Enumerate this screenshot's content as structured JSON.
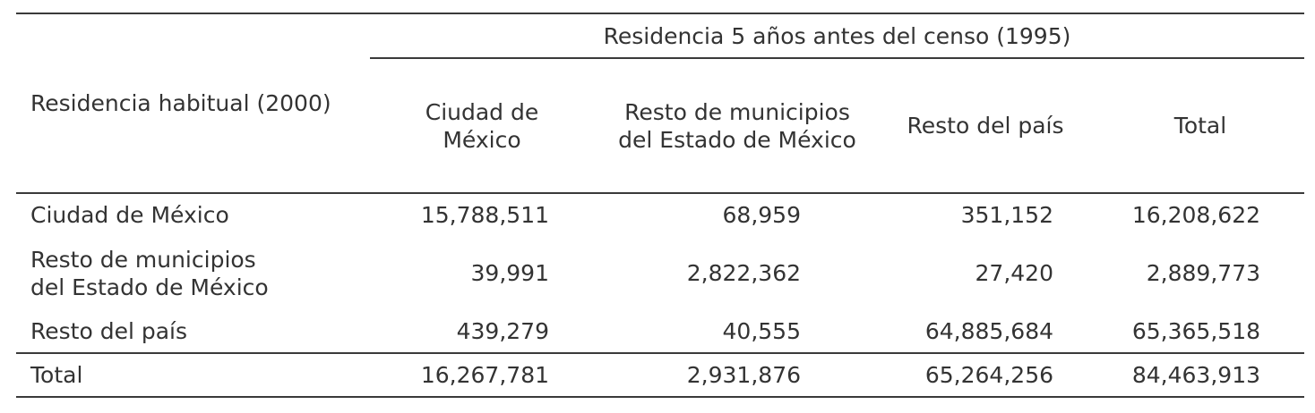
{
  "table": {
    "stub_header": "Residencia habitual (2000)",
    "spanner_header": "Residencia 5 años antes del censo (1995)",
    "columns": [
      {
        "line1": "Ciudad de",
        "line2": "México"
      },
      {
        "line1": "Resto de municipios",
        "line2": "del Estado de México"
      },
      {
        "line1": "Resto del país",
        "line2": ""
      },
      {
        "line1": "Total",
        "line2": ""
      }
    ],
    "rows": [
      {
        "label1": "Ciudad de México",
        "label2": "",
        "values": [
          "15,788,511",
          "68,959",
          "351,152",
          "16,208,622"
        ]
      },
      {
        "label1": "Resto de municipios",
        "label2": "del Estado de México",
        "values": [
          "39,991",
          "2,822,362",
          "27,420",
          "2,889,773"
        ]
      },
      {
        "label1": "Resto del país",
        "label2": "",
        "values": [
          "439,279",
          "40,555",
          "64,885,684",
          "65,365,518"
        ]
      }
    ],
    "total_row": {
      "label": "Total",
      "values": [
        "16,267,781",
        "2,931,876",
        "65,264,256",
        "84,463,913"
      ]
    }
  }
}
